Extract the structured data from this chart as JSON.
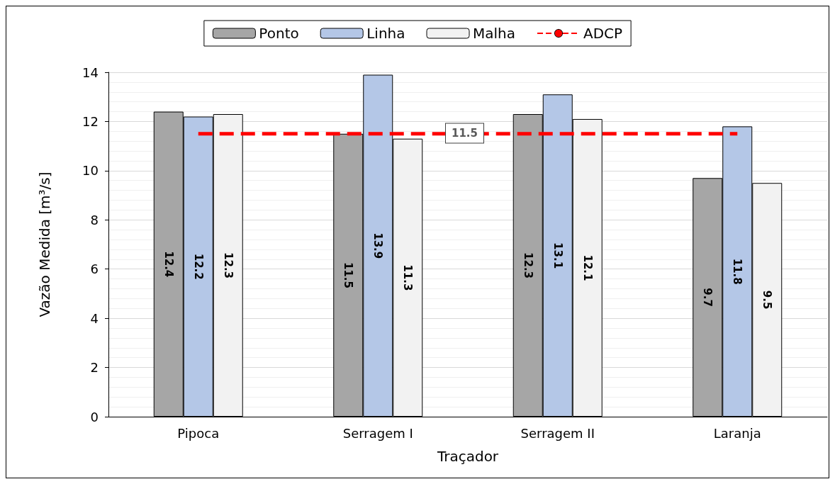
{
  "chart_data": {
    "type": "bar",
    "xlabel": "Traçador",
    "ylabel": "Vazão Medida [m³/s]",
    "categories": [
      "Pipoca",
      "Serragem I",
      "Serragem II",
      "Laranja"
    ],
    "series": [
      {
        "name": "Ponto",
        "color": "#a6a6a6",
        "values": [
          12.4,
          11.5,
          12.3,
          9.7
        ],
        "value_labels": [
          "12.4",
          "11.5",
          "12.3",
          "9.7"
        ]
      },
      {
        "name": "Linha",
        "color": "#b4c7e7",
        "values": [
          12.2,
          13.9,
          13.1,
          11.8
        ],
        "value_labels": [
          "12.2",
          "13.9",
          "13.1",
          "11.8"
        ]
      },
      {
        "name": "Malha",
        "color": "#f2f2f2",
        "values": [
          12.3,
          11.3,
          12.1,
          9.5
        ],
        "value_labels": [
          "12.3",
          "11.3",
          "12.1",
          "9.5"
        ]
      },
      {
        "name": "ADCP",
        "type": "line",
        "color": "#ff0000",
        "line_style": "dashed",
        "marker": "none",
        "values": [
          11.5,
          11.5,
          11.5,
          11.5
        ]
      }
    ],
    "annotations": [
      "11.5"
    ],
    "ylim": [
      0,
      14
    ],
    "yticks": [
      0,
      2,
      4,
      6,
      8,
      10,
      12,
      14
    ],
    "grid": "y",
    "legend": "top"
  }
}
